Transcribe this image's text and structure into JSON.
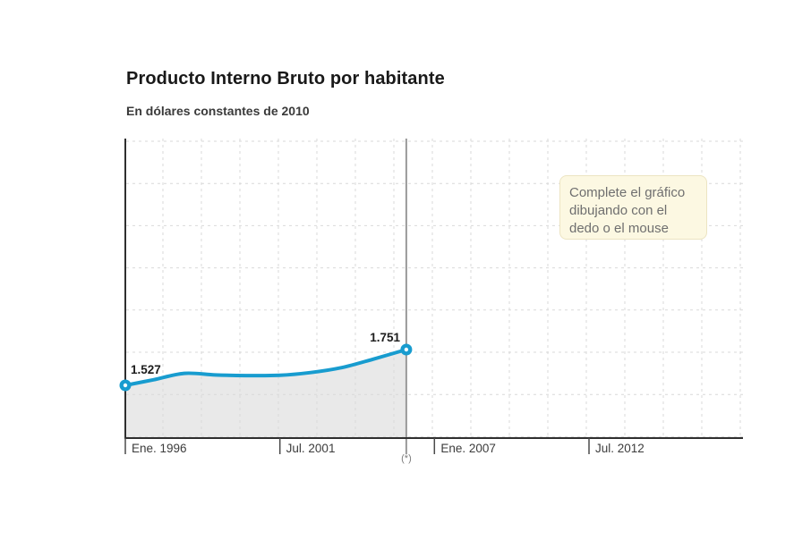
{
  "header": {
    "title": "Producto Interno Bruto por habitante",
    "subtitle": "En dólares constantes de 2010"
  },
  "chart_data": {
    "type": "line",
    "title": "Producto Interno Bruto por habitante",
    "subtitle": "En dólares constantes de 2010",
    "x_ticks": [
      "Ene. 1996",
      "Jul. 2001",
      "Ene. 2007",
      "Jul. 2012"
    ],
    "x_tick_years": [
      1996.0,
      2001.5,
      2007.0,
      2012.5
    ],
    "x_axis_range_years": [
      1996.0,
      2018.0
    ],
    "ylim_estimated": [
      1200,
      3075
    ],
    "grid": true,
    "legend": false,
    "series": [
      {
        "name": "PIB por habitante",
        "points": [
          [
            1996.0,
            1527
          ],
          [
            1997.0,
            1562
          ],
          [
            1998.1,
            1602
          ],
          [
            1999.2,
            1592
          ],
          [
            2000.3,
            1588
          ],
          [
            2001.5,
            1590
          ],
          [
            2002.6,
            1607
          ],
          [
            2003.7,
            1638
          ],
          [
            2004.8,
            1690
          ],
          [
            2006.0,
            1751
          ]
        ]
      }
    ],
    "start_label": "1.527",
    "end_label": "1.751",
    "divider_year": 2006.0,
    "footnote": "(*)",
    "annotation": "Complete el gráfico dibujando con el dedo o el mouse"
  },
  "colors": {
    "background": "#ffffff",
    "line": "#189ccf",
    "area_fill": "#e9e9e9",
    "axis": "#2f2f2f",
    "grid": "#d9d9d9",
    "divider": "#9a9a9a",
    "tick": "#4a4a4a",
    "axis_label_text": "#3c3c3c",
    "value_label_text": "#1c1c1c",
    "footnote_text": "#7d7d7d",
    "title_text": "#191919",
    "subtitle_text": "#3a3a3a",
    "tooltip_bg": "#fcf8e2",
    "tooltip_border": "#ece4c2",
    "tooltip_text": "#6f6f6f",
    "marker_center": "#ffffff"
  }
}
